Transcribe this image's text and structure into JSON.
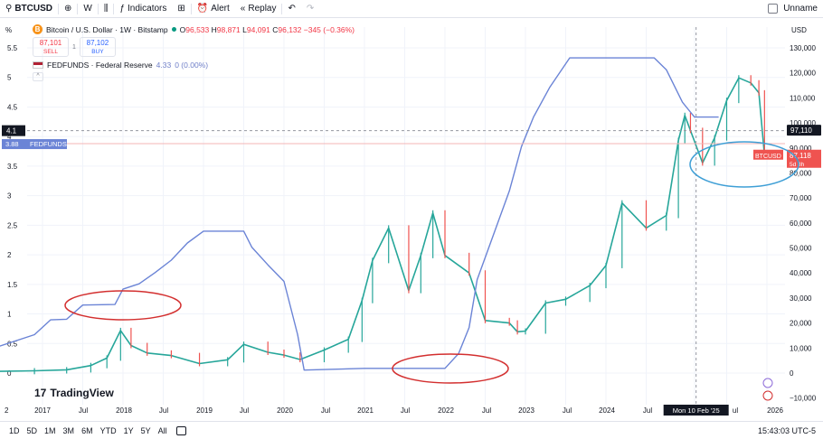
{
  "toolbar": {
    "symbol": "BTCUSD",
    "interval": "W",
    "indicators_label": "Indicators",
    "alert_label": "Alert",
    "replay_label": "Replay",
    "layout_name": "Unname"
  },
  "legend": {
    "title": "Bitcoin / U.S. Dollar · 1W · Bitstamp",
    "btc_icon": "B",
    "ohlc": {
      "o": "96,533",
      "h": "98,871",
      "l": "94,091",
      "c": "96,132",
      "change": "−345 (−0.36%)"
    },
    "o_prefix": "O",
    "h_prefix": "H",
    "l_prefix": "L",
    "c_prefix": "C",
    "sell_price": "87,101",
    "sell_label": "SELL",
    "spread": "1",
    "buy_price": "87,102",
    "buy_label": "BUY",
    "indicator": "FEDFUNDS · Federal Reserve",
    "indicator_value": "4.33",
    "indicator_change": "0 (0.00%)"
  },
  "left_axis": {
    "unit": "%",
    "ticks": [
      "5.5",
      "5",
      "4.5",
      "4",
      "3.5",
      "3",
      "2.5",
      "2",
      "1.5",
      "1",
      "0.5",
      "0"
    ],
    "crosshair_label": "4.1",
    "fed_badge_value": "3.88",
    "fed_badge_name": "FEDFUNDS"
  },
  "right_axis": {
    "unit": "USD",
    "ticks": [
      "130,000",
      "120,000",
      "110,000",
      "100,000",
      "90,000",
      "80,000",
      "70,000",
      "60,000",
      "50,000",
      "40,000",
      "30,000",
      "20,000",
      "10,000",
      "0",
      "−10,000"
    ],
    "crosshair_label": "97,110",
    "btc_badge_name": "BTCUSD",
    "btc_badge_value": "87,118",
    "btc_badge_countdown": "5d 8h"
  },
  "time_axis": {
    "ticks": [
      "2",
      "2017",
      "Jul",
      "2018",
      "Jul",
      "2019",
      "Jul",
      "2020",
      "Jul",
      "2021",
      "Jul",
      "2022",
      "Jul",
      "2023",
      "Jul",
      "2024",
      "Jul",
      "Mon 10 Feb '25",
      "ul",
      "2026"
    ],
    "crosshair_date": "Mon 10 Feb '25"
  },
  "branding": {
    "logo_text": "TradingView",
    "logo_mark": "17"
  },
  "bottom": {
    "ranges": [
      "1D",
      "5D",
      "1M",
      "3M",
      "6M",
      "YTD",
      "1Y",
      "5Y",
      "All"
    ],
    "time": "15:43:03 UTC-5"
  },
  "colors": {
    "btc": "#26a69a",
    "btc_down": "#ef5350",
    "fed": "#6b84d6",
    "annotation": "#d32f2f",
    "highlight": "#3f9fd6"
  },
  "chart_data": [
    {
      "type": "line",
      "name": "FEDFUNDS",
      "axis": "left",
      "unit": "%",
      "x": [
        2016.3,
        2016.9,
        2017.1,
        2017.3,
        2017.5,
        2017.9,
        2018.0,
        2018.2,
        2018.4,
        2018.6,
        2018.8,
        2019.0,
        2019.5,
        2019.6,
        2019.8,
        2020.0,
        2020.17,
        2020.25,
        2021.0,
        2022.0,
        2022.17,
        2022.3,
        2022.4,
        2022.6,
        2022.8,
        2022.95,
        2023.1,
        2023.3,
        2023.55,
        2024.6,
        2024.75,
        2024.95,
        2025.1,
        2025.4
      ],
      "y": [
        0.38,
        0.65,
        0.9,
        0.91,
        1.15,
        1.16,
        1.42,
        1.51,
        1.7,
        1.91,
        2.2,
        2.4,
        2.4,
        2.13,
        1.83,
        1.55,
        0.65,
        0.05,
        0.08,
        0.08,
        0.33,
        0.77,
        1.58,
        2.33,
        3.08,
        3.83,
        4.33,
        4.83,
        5.33,
        5.33,
        5.13,
        4.58,
        4.33,
        4.33
      ]
    },
    {
      "type": "line",
      "name": "BTCUSD",
      "axis": "right",
      "unit": "USD",
      "x": [
        2016.3,
        2016.9,
        2017.3,
        2017.6,
        2017.8,
        2017.97,
        2018.1,
        2018.3,
        2018.6,
        2018.95,
        2019.3,
        2019.5,
        2019.8,
        2020.0,
        2020.2,
        2020.5,
        2020.8,
        2020.97,
        2021.1,
        2021.3,
        2021.55,
        2021.7,
        2021.85,
        2022.0,
        2022.3,
        2022.5,
        2022.8,
        2022.9,
        2023.0,
        2023.25,
        2023.5,
        2023.8,
        2024.0,
        2024.2,
        2024.5,
        2024.75,
        2024.9,
        2024.98,
        2025.05,
        2025.2,
        2025.35,
        2025.5,
        2025.65,
        2025.8,
        2025.9,
        2025.97
      ],
      "y": [
        600,
        900,
        1300,
        3000,
        6000,
        17000,
        11000,
        8000,
        7000,
        3800,
        5300,
        11500,
        8300,
        7200,
        5400,
        9200,
        13500,
        29000,
        45000,
        58000,
        33000,
        47000,
        64000,
        47000,
        40000,
        21000,
        20000,
        16500,
        16800,
        28000,
        29500,
        35000,
        43000,
        68000,
        58000,
        63000,
        93000,
        103000,
        97000,
        84000,
        94000,
        109000,
        118000,
        116000,
        112000,
        87000
      ]
    }
  ]
}
